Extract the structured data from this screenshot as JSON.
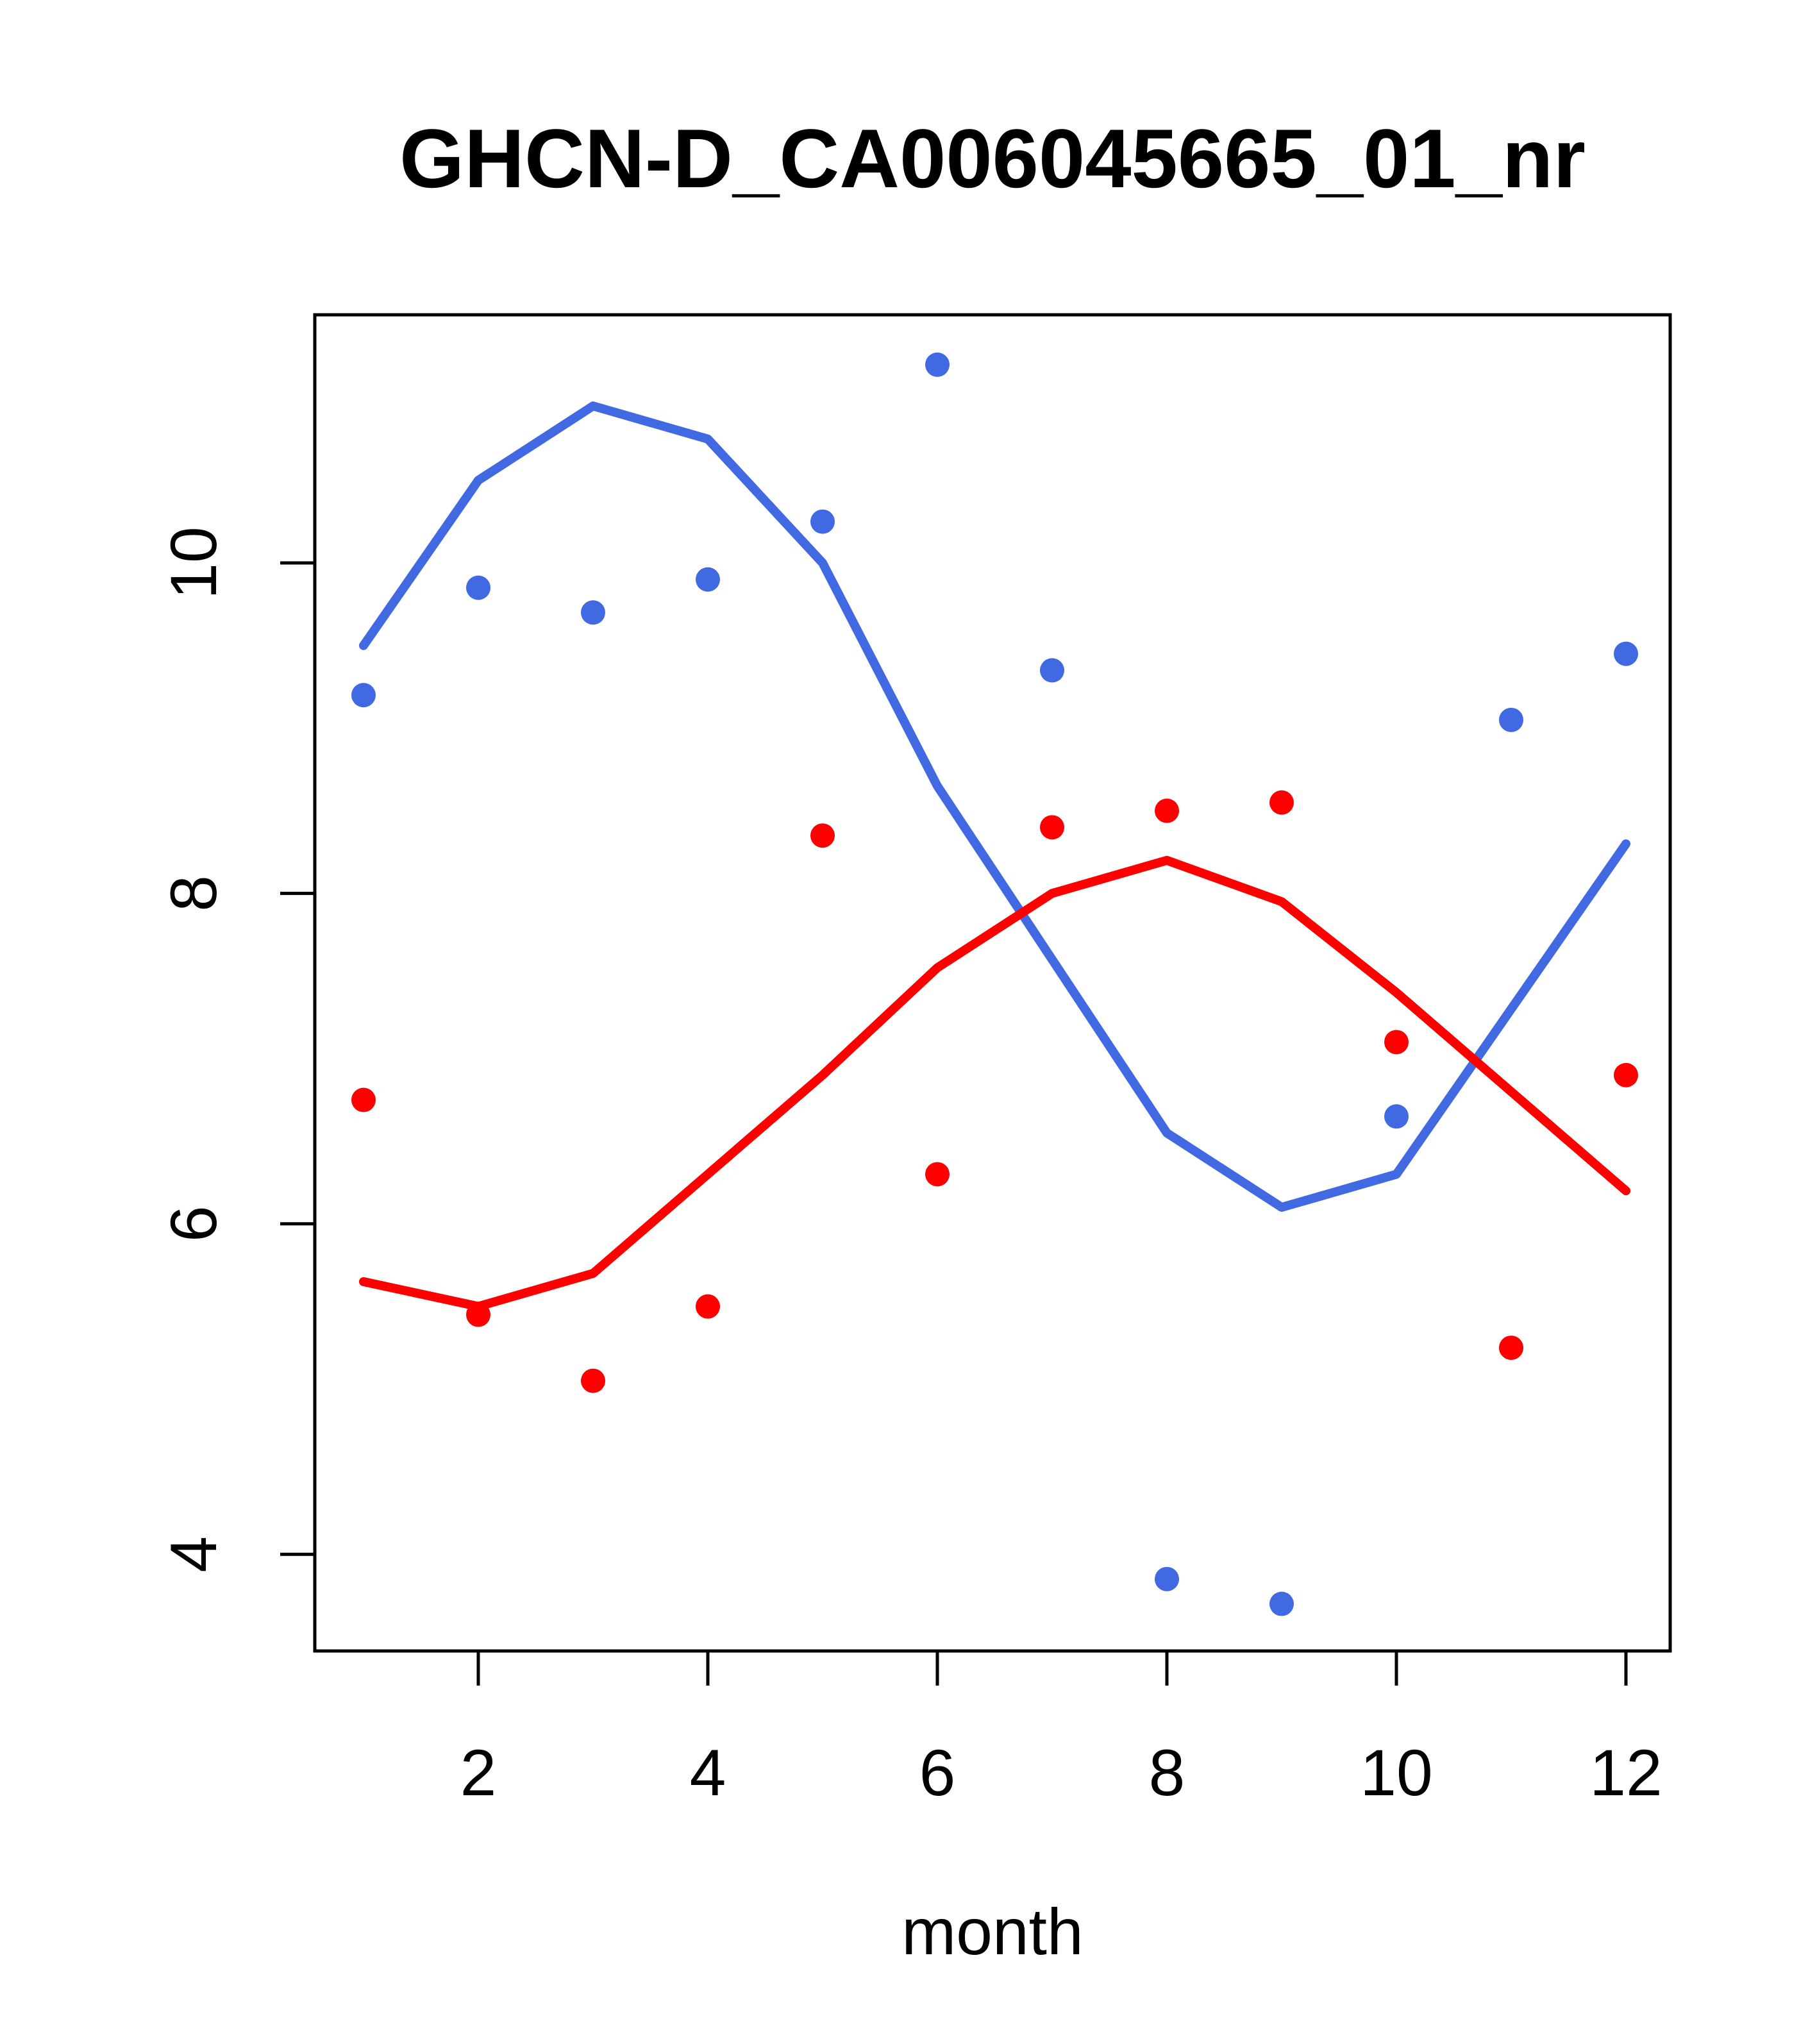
{
  "chart_data": {
    "type": "scatter",
    "title": "GHCN-D_CA006045665_01_nr",
    "xlabel": "month",
    "ylabel": "",
    "x": [
      1,
      2,
      3,
      4,
      5,
      6,
      7,
      8,
      9,
      10,
      11,
      12
    ],
    "x_ticks": [
      2,
      4,
      6,
      8,
      10,
      12
    ],
    "y_ticks": [
      4,
      6,
      8,
      10
    ],
    "xlim": [
      0.56,
      12.44
    ],
    "ylim": [
      3.42,
      11.5
    ],
    "grid": false,
    "legend": "none",
    "background": "#ffffff",
    "axis_color": "#000000",
    "series": [
      {
        "name": "series-blue",
        "color": "#4169E1",
        "marker": "circle",
        "points": [
          9.2,
          9.85,
          9.7,
          9.9,
          10.25,
          11.2,
          9.35,
          3.85,
          3.7,
          6.65,
          9.05,
          9.45
        ],
        "trend_line": [
          9.5,
          10.5,
          10.95,
          10.75,
          10.0,
          8.65,
          7.6,
          6.55,
          6.1,
          6.3,
          7.3,
          8.3
        ]
      },
      {
        "name": "series-red",
        "color": "#FF0000",
        "marker": "circle",
        "points": [
          6.75,
          5.45,
          5.05,
          5.5,
          8.35,
          6.3,
          8.4,
          8.5,
          8.55,
          7.1,
          5.25,
          6.9
        ],
        "trend_line": [
          5.65,
          5.5,
          5.7,
          6.3,
          6.9,
          7.55,
          8.0,
          8.2,
          7.95,
          7.4,
          6.8,
          6.2
        ]
      }
    ]
  }
}
